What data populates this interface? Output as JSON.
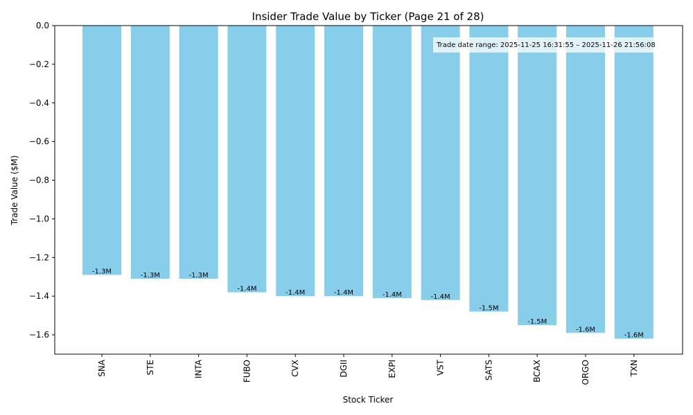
{
  "chart_data": {
    "type": "bar",
    "title": "Insider Trade Value by Ticker (Page 21 of 28)",
    "xlabel": "Stock Ticker",
    "ylabel": "Trade Value ($M)",
    "categories": [
      "SNA",
      "STE",
      "INTA",
      "FUBO",
      "CVX",
      "DGII",
      "EXPI",
      "VST",
      "SATS",
      "BCAX",
      "ORGO",
      "TXN"
    ],
    "values": [
      -1.29,
      -1.31,
      -1.31,
      -1.38,
      -1.4,
      -1.4,
      -1.41,
      -1.42,
      -1.48,
      -1.55,
      -1.59,
      -1.62
    ],
    "data_labels": [
      "-1.3M",
      "-1.3M",
      "-1.3M",
      "-1.4M",
      "-1.4M",
      "-1.4M",
      "-1.4M",
      "-1.4M",
      "-1.5M",
      "-1.5M",
      "-1.6M",
      "-1.6M"
    ],
    "ylim": [
      -1.7,
      0.0
    ],
    "yticks": [
      0.0,
      -0.2,
      -0.4,
      -0.6,
      -0.8,
      -1.0,
      -1.2,
      -1.4,
      -1.6
    ],
    "ytick_labels": [
      "0.0",
      "−0.2",
      "−0.4",
      "−0.6",
      "−0.8",
      "−1.0",
      "−1.2",
      "−1.4",
      "−1.6"
    ],
    "grid": false,
    "bar_color": "#87CEEB",
    "annotation": "Trade date range: 2025-11-25 16:31:55 – 2025-11-26 21:56:08",
    "annotation_position": "top-right"
  }
}
